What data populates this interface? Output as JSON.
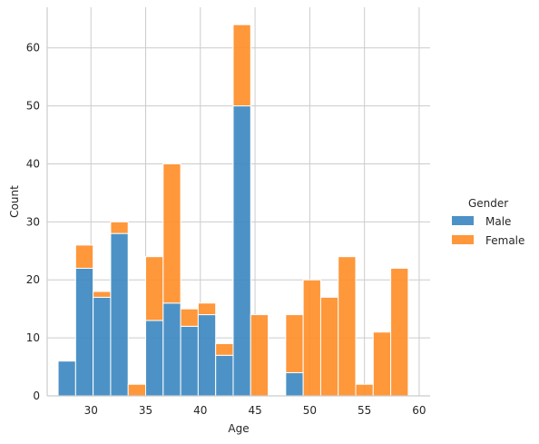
{
  "chart_data": {
    "type": "bar",
    "stacked": true,
    "bin_width": 1.6,
    "xlabel": "Age",
    "ylabel": "Count",
    "xlim": [
      26,
      61
    ],
    "ylim": [
      0,
      67
    ],
    "xticks": [
      30,
      35,
      40,
      45,
      50,
      55,
      60
    ],
    "yticks": [
      0,
      10,
      20,
      30,
      40,
      50,
      60
    ],
    "grid": true,
    "legend": {
      "title": "Gender",
      "placement": "right"
    },
    "x": [
      27.0,
      28.6,
      30.2,
      31.8,
      33.4,
      35.0,
      36.6,
      38.2,
      39.8,
      41.4,
      43.0,
      44.6,
      46.2,
      47.8,
      49.4,
      51.0,
      52.6,
      54.2,
      55.8,
      57.4
    ],
    "series": [
      {
        "name": "Male",
        "color": "#3a86c0",
        "values": [
          6,
          22,
          17,
          28,
          0,
          13,
          16,
          12,
          14,
          7,
          50,
          0,
          0,
          4,
          0,
          0,
          0,
          0,
          0,
          0
        ]
      },
      {
        "name": "Female",
        "color": "#ff8c26",
        "values": [
          0,
          4,
          1,
          2,
          2,
          11,
          24,
          3,
          2,
          2,
          14,
          14,
          0,
          10,
          20,
          17,
          24,
          2,
          11,
          22
        ]
      }
    ]
  }
}
